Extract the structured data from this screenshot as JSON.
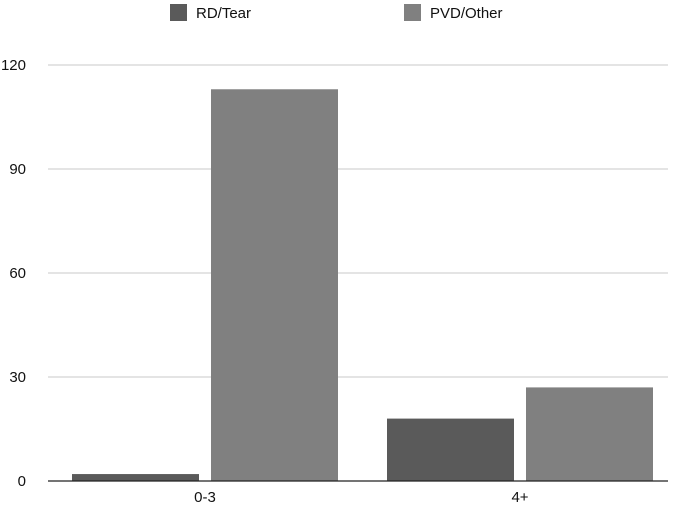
{
  "chart_data": {
    "type": "bar",
    "title": "",
    "xlabel": "",
    "ylabel": "",
    "categories": [
      "0-3",
      "4+"
    ],
    "series": [
      {
        "name": "RD/Tear",
        "values": [
          2,
          18
        ],
        "color": "#5a5a5a"
      },
      {
        "name": "PVD/Other",
        "values": [
          113,
          27
        ],
        "color": "#808080"
      }
    ],
    "ylim": [
      0,
      120
    ],
    "yticks": [
      0,
      30,
      60,
      90,
      120
    ],
    "grid": true,
    "legend_position": "top"
  }
}
